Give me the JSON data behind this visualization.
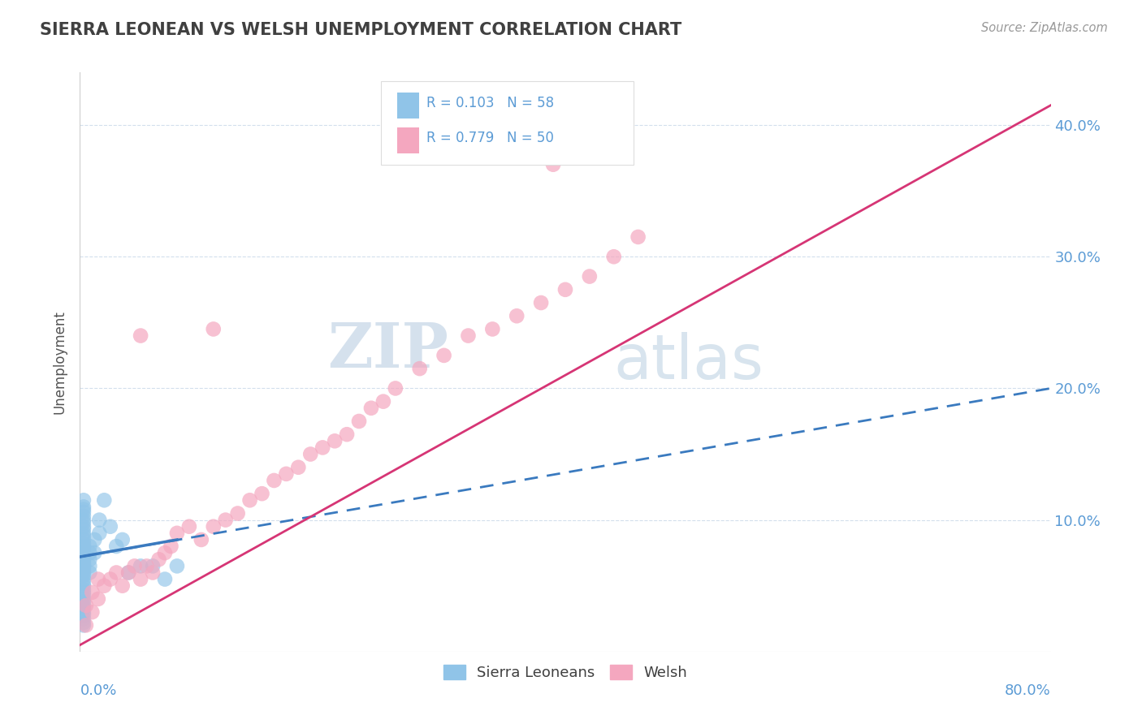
{
  "title": "SIERRA LEONEAN VS WELSH UNEMPLOYMENT CORRELATION CHART",
  "source": "Source: ZipAtlas.com",
  "ylabel": "Unemployment",
  "ytick_values": [
    0.1,
    0.2,
    0.3,
    0.4
  ],
  "xlim": [
    0.0,
    0.8
  ],
  "ylim": [
    0.0,
    0.44
  ],
  "legend_entry1": "R = 0.103   N = 58",
  "legend_entry2": "R = 0.779   N = 50",
  "legend_labels": [
    "Sierra Leoneans",
    "Welsh"
  ],
  "color_blue": "#90c4e8",
  "color_pink": "#f4a7bf",
  "color_blue_line": "#3a7abf",
  "color_pink_line": "#d63575",
  "title_color": "#404040",
  "axis_label_color": "#5b9bd5",
  "watermark_zip": "ZIP",
  "watermark_atlas": "atlas",
  "sierra_x": [
    0.003,
    0.003,
    0.003,
    0.003,
    0.003,
    0.003,
    0.003,
    0.003,
    0.003,
    0.003,
    0.003,
    0.003,
    0.003,
    0.003,
    0.003,
    0.003,
    0.003,
    0.003,
    0.003,
    0.003,
    0.003,
    0.003,
    0.003,
    0.003,
    0.003,
    0.003,
    0.003,
    0.003,
    0.003,
    0.003,
    0.003,
    0.003,
    0.003,
    0.003,
    0.003,
    0.003,
    0.003,
    0.003,
    0.003,
    0.003,
    0.008,
    0.008,
    0.008,
    0.008,
    0.008,
    0.012,
    0.012,
    0.016,
    0.016,
    0.02,
    0.025,
    0.03,
    0.035,
    0.04,
    0.05,
    0.06,
    0.07,
    0.08
  ],
  "sierra_y": [
    0.02,
    0.022,
    0.025,
    0.028,
    0.03,
    0.033,
    0.035,
    0.038,
    0.04,
    0.043,
    0.045,
    0.047,
    0.05,
    0.052,
    0.055,
    0.058,
    0.06,
    0.062,
    0.064,
    0.066,
    0.068,
    0.07,
    0.072,
    0.074,
    0.076,
    0.078,
    0.08,
    0.082,
    0.085,
    0.088,
    0.09,
    0.093,
    0.095,
    0.098,
    0.1,
    0.103,
    0.106,
    0.108,
    0.11,
    0.115,
    0.06,
    0.065,
    0.07,
    0.075,
    0.08,
    0.075,
    0.085,
    0.09,
    0.1,
    0.115,
    0.095,
    0.08,
    0.085,
    0.06,
    0.065,
    0.065,
    0.055,
    0.065
  ],
  "welsh_x": [
    0.005,
    0.005,
    0.01,
    0.01,
    0.015,
    0.015,
    0.02,
    0.025,
    0.03,
    0.035,
    0.04,
    0.045,
    0.05,
    0.055,
    0.06,
    0.065,
    0.07,
    0.075,
    0.08,
    0.09,
    0.1,
    0.11,
    0.12,
    0.13,
    0.14,
    0.15,
    0.16,
    0.17,
    0.18,
    0.19,
    0.2,
    0.21,
    0.22,
    0.23,
    0.24,
    0.25,
    0.26,
    0.28,
    0.3,
    0.32,
    0.34,
    0.36,
    0.38,
    0.4,
    0.42,
    0.44,
    0.46,
    0.05,
    0.11,
    0.39
  ],
  "welsh_y": [
    0.02,
    0.035,
    0.045,
    0.03,
    0.04,
    0.055,
    0.05,
    0.055,
    0.06,
    0.05,
    0.06,
    0.065,
    0.055,
    0.065,
    0.06,
    0.07,
    0.075,
    0.08,
    0.09,
    0.095,
    0.085,
    0.095,
    0.1,
    0.105,
    0.115,
    0.12,
    0.13,
    0.135,
    0.14,
    0.15,
    0.155,
    0.16,
    0.165,
    0.175,
    0.185,
    0.19,
    0.2,
    0.215,
    0.225,
    0.24,
    0.245,
    0.255,
    0.265,
    0.275,
    0.285,
    0.3,
    0.315,
    0.24,
    0.245,
    0.37
  ],
  "trend_blue_x0": 0.0,
  "trend_blue_y0": 0.072,
  "trend_blue_x1": 0.8,
  "trend_blue_y1": 0.2,
  "trend_pink_x0": 0.0,
  "trend_pink_y0": 0.005,
  "trend_pink_x1": 0.8,
  "trend_pink_y1": 0.415
}
